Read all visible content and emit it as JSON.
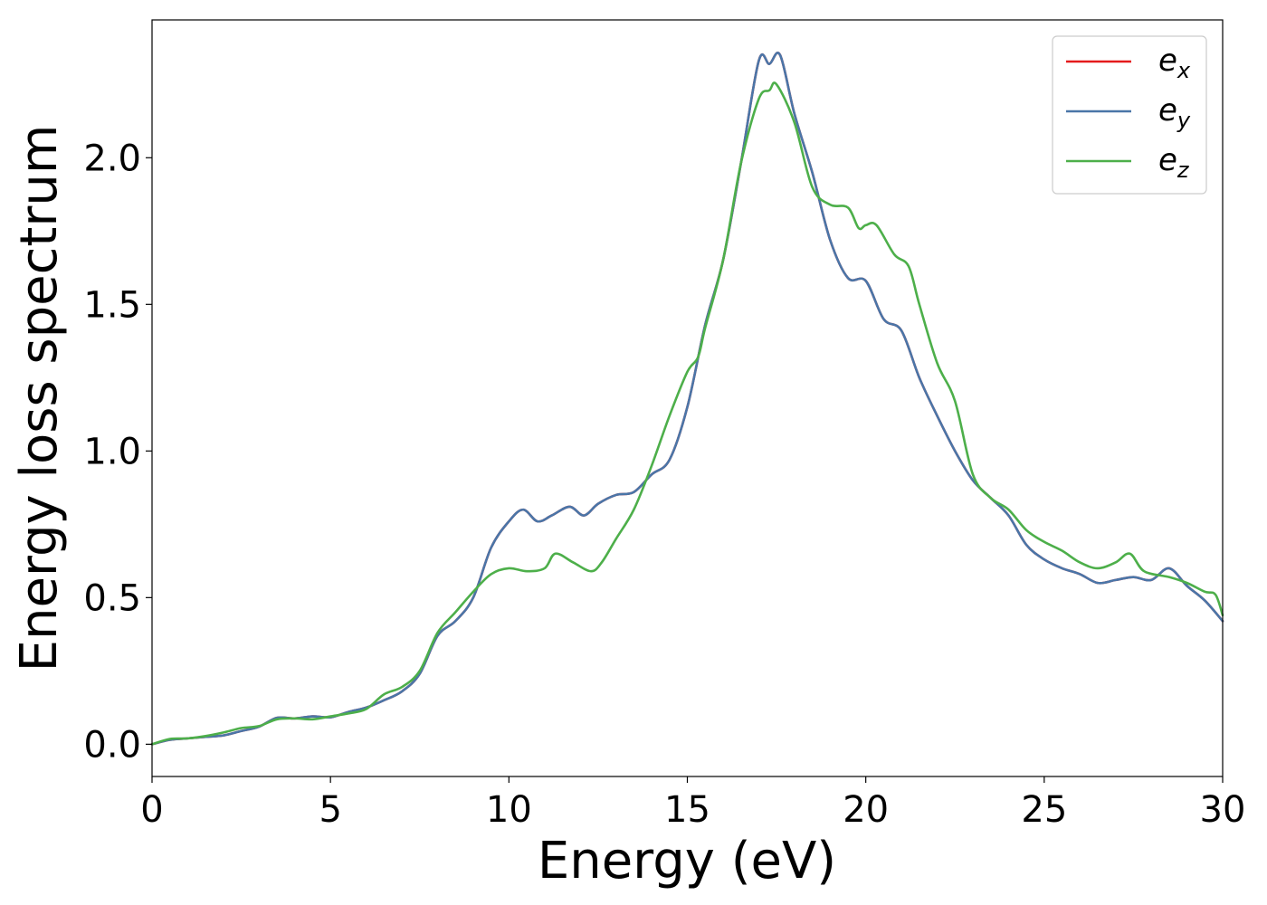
{
  "chart_data": {
    "type": "line",
    "title": "",
    "xlabel": "Energy (eV)",
    "ylabel": "Energy loss spectrum",
    "xlim": [
      0,
      30
    ],
    "ylim": [
      -0.11,
      2.47
    ],
    "xticks": [
      0,
      5,
      10,
      15,
      20,
      25,
      30
    ],
    "xtick_labels": [
      "0",
      "5",
      "10",
      "15",
      "20",
      "25",
      "30"
    ],
    "yticks": [
      0.0,
      0.5,
      1.0,
      1.5,
      2.0
    ],
    "ytick_labels": [
      "0.0",
      "0.5",
      "1.0",
      "1.5",
      "2.0"
    ],
    "grid": false,
    "legend_position": "top-right",
    "series": [
      {
        "name": "e",
        "subscript": "x",
        "color": "#e41a1c",
        "points": [
          [
            0,
            0
          ],
          [
            0.5,
            0.015
          ],
          [
            1,
            0.02
          ],
          [
            1.5,
            0.025
          ],
          [
            2,
            0.03
          ],
          [
            2.5,
            0.045
          ],
          [
            3,
            0.06
          ],
          [
            3.5,
            0.09
          ],
          [
            4,
            0.088
          ],
          [
            4.5,
            0.095
          ],
          [
            5,
            0.092
          ],
          [
            5.5,
            0.11
          ],
          [
            6,
            0.125
          ],
          [
            6.5,
            0.15
          ],
          [
            7,
            0.18
          ],
          [
            7.5,
            0.24
          ],
          [
            8,
            0.37
          ],
          [
            8.5,
            0.42
          ],
          [
            9,
            0.5
          ],
          [
            9.5,
            0.67
          ],
          [
            10,
            0.76
          ],
          [
            10.4,
            0.8
          ],
          [
            10.8,
            0.76
          ],
          [
            11.2,
            0.78
          ],
          [
            11.7,
            0.81
          ],
          [
            12.1,
            0.78
          ],
          [
            12.5,
            0.82
          ],
          [
            13,
            0.85
          ],
          [
            13.5,
            0.86
          ],
          [
            14,
            0.92
          ],
          [
            14.5,
            0.97
          ],
          [
            15,
            1.15
          ],
          [
            15.5,
            1.43
          ],
          [
            16,
            1.65
          ],
          [
            16.5,
            1.98
          ],
          [
            17,
            2.33
          ],
          [
            17.3,
            2.32
          ],
          [
            17.6,
            2.35
          ],
          [
            18,
            2.15
          ],
          [
            18.5,
            1.95
          ],
          [
            19,
            1.72
          ],
          [
            19.5,
            1.59
          ],
          [
            20,
            1.58
          ],
          [
            20.5,
            1.45
          ],
          [
            21,
            1.41
          ],
          [
            21.5,
            1.25
          ],
          [
            22,
            1.12
          ],
          [
            22.5,
            1.0
          ],
          [
            23,
            0.9
          ],
          [
            23.5,
            0.84
          ],
          [
            24,
            0.78
          ],
          [
            24.5,
            0.68
          ],
          [
            25,
            0.63
          ],
          [
            25.5,
            0.6
          ],
          [
            26,
            0.58
          ],
          [
            26.5,
            0.55
          ],
          [
            27,
            0.56
          ],
          [
            27.5,
            0.57
          ],
          [
            28,
            0.56
          ],
          [
            28.5,
            0.6
          ],
          [
            29,
            0.54
          ],
          [
            29.5,
            0.49
          ],
          [
            30,
            0.42
          ]
        ]
      },
      {
        "name": "e",
        "subscript": "y",
        "color": "#4a76a8",
        "points": [
          [
            0,
            0
          ],
          [
            0.5,
            0.015
          ],
          [
            1,
            0.02
          ],
          [
            1.5,
            0.025
          ],
          [
            2,
            0.03
          ],
          [
            2.5,
            0.045
          ],
          [
            3,
            0.06
          ],
          [
            3.5,
            0.09
          ],
          [
            4,
            0.088
          ],
          [
            4.5,
            0.095
          ],
          [
            5,
            0.092
          ],
          [
            5.5,
            0.11
          ],
          [
            6,
            0.125
          ],
          [
            6.5,
            0.15
          ],
          [
            7,
            0.18
          ],
          [
            7.5,
            0.24
          ],
          [
            8,
            0.37
          ],
          [
            8.5,
            0.42
          ],
          [
            9,
            0.5
          ],
          [
            9.5,
            0.67
          ],
          [
            10,
            0.76
          ],
          [
            10.4,
            0.8
          ],
          [
            10.8,
            0.76
          ],
          [
            11.2,
            0.78
          ],
          [
            11.7,
            0.81
          ],
          [
            12.1,
            0.78
          ],
          [
            12.5,
            0.82
          ],
          [
            13,
            0.85
          ],
          [
            13.5,
            0.86
          ],
          [
            14,
            0.92
          ],
          [
            14.5,
            0.97
          ],
          [
            15,
            1.15
          ],
          [
            15.5,
            1.43
          ],
          [
            16,
            1.65
          ],
          [
            16.5,
            1.98
          ],
          [
            17,
            2.33
          ],
          [
            17.3,
            2.32
          ],
          [
            17.6,
            2.35
          ],
          [
            18,
            2.15
          ],
          [
            18.5,
            1.95
          ],
          [
            19,
            1.72
          ],
          [
            19.5,
            1.59
          ],
          [
            20,
            1.58
          ],
          [
            20.5,
            1.45
          ],
          [
            21,
            1.41
          ],
          [
            21.5,
            1.25
          ],
          [
            22,
            1.12
          ],
          [
            22.5,
            1.0
          ],
          [
            23,
            0.9
          ],
          [
            23.5,
            0.84
          ],
          [
            24,
            0.78
          ],
          [
            24.5,
            0.68
          ],
          [
            25,
            0.63
          ],
          [
            25.5,
            0.6
          ],
          [
            26,
            0.58
          ],
          [
            26.5,
            0.55
          ],
          [
            27,
            0.56
          ],
          [
            27.5,
            0.57
          ],
          [
            28,
            0.56
          ],
          [
            28.5,
            0.6
          ],
          [
            29,
            0.54
          ],
          [
            29.5,
            0.49
          ],
          [
            30,
            0.42
          ]
        ]
      },
      {
        "name": "e",
        "subscript": "z",
        "color": "#4daf4a",
        "points": [
          [
            0,
            0
          ],
          [
            0.5,
            0.018
          ],
          [
            1,
            0.02
          ],
          [
            1.5,
            0.028
          ],
          [
            2,
            0.04
          ],
          [
            2.5,
            0.055
          ],
          [
            3,
            0.062
          ],
          [
            3.5,
            0.085
          ],
          [
            4,
            0.088
          ],
          [
            4.5,
            0.085
          ],
          [
            5,
            0.095
          ],
          [
            5.5,
            0.105
          ],
          [
            6,
            0.12
          ],
          [
            6.5,
            0.17
          ],
          [
            7,
            0.195
          ],
          [
            7.5,
            0.25
          ],
          [
            8,
            0.38
          ],
          [
            8.5,
            0.45
          ],
          [
            9,
            0.52
          ],
          [
            9.5,
            0.58
          ],
          [
            10,
            0.6
          ],
          [
            10.5,
            0.59
          ],
          [
            11,
            0.6
          ],
          [
            11.3,
            0.65
          ],
          [
            11.8,
            0.62
          ],
          [
            12.3,
            0.59
          ],
          [
            12.6,
            0.62
          ],
          [
            13,
            0.7
          ],
          [
            13.5,
            0.8
          ],
          [
            14,
            0.95
          ],
          [
            14.5,
            1.12
          ],
          [
            15,
            1.27
          ],
          [
            15.3,
            1.32
          ],
          [
            15.5,
            1.42
          ],
          [
            16,
            1.65
          ],
          [
            16.5,
            1.98
          ],
          [
            17,
            2.2
          ],
          [
            17.3,
            2.23
          ],
          [
            17.5,
            2.25
          ],
          [
            18,
            2.12
          ],
          [
            18.5,
            1.9
          ],
          [
            19,
            1.84
          ],
          [
            19.5,
            1.83
          ],
          [
            19.8,
            1.76
          ],
          [
            20,
            1.77
          ],
          [
            20.3,
            1.77
          ],
          [
            20.8,
            1.67
          ],
          [
            21.2,
            1.63
          ],
          [
            21.5,
            1.5
          ],
          [
            22,
            1.3
          ],
          [
            22.5,
            1.17
          ],
          [
            23,
            0.92
          ],
          [
            23.5,
            0.84
          ],
          [
            24,
            0.8
          ],
          [
            24.5,
            0.73
          ],
          [
            25,
            0.69
          ],
          [
            25.5,
            0.66
          ],
          [
            26,
            0.62
          ],
          [
            26.5,
            0.6
          ],
          [
            27,
            0.62
          ],
          [
            27.4,
            0.65
          ],
          [
            27.8,
            0.59
          ],
          [
            28.5,
            0.57
          ],
          [
            29,
            0.55
          ],
          [
            29.5,
            0.52
          ],
          [
            29.8,
            0.51
          ],
          [
            30,
            0.44
          ]
        ]
      }
    ]
  }
}
